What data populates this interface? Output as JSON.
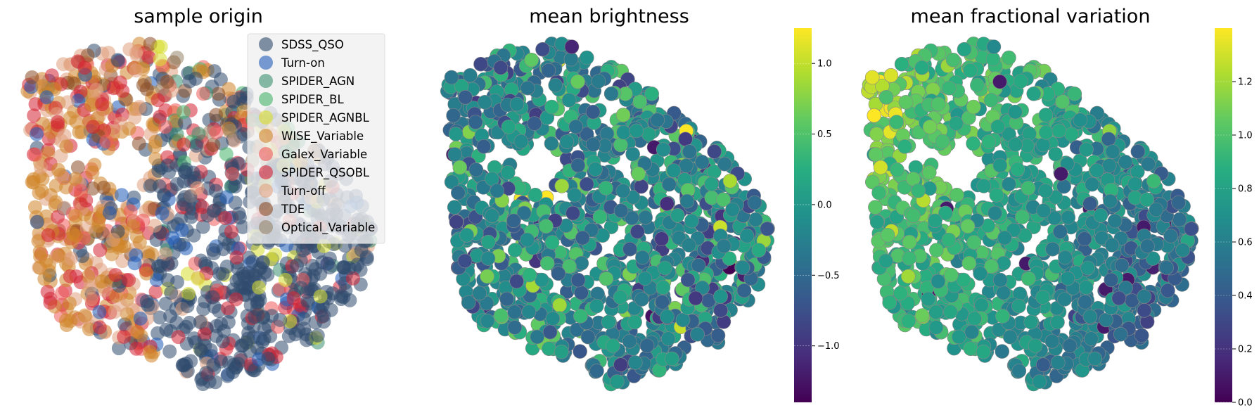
{
  "figure": {
    "panels": [
      {
        "title": "sample origin"
      },
      {
        "title": "mean brightness"
      },
      {
        "title": "mean fractional variation"
      }
    ]
  },
  "chart_data": [
    {
      "type": "scatter",
      "title": "sample origin",
      "encoding": "categorical",
      "n_points_approx": 1300,
      "legend": [
        {
          "label": "SDSS_QSO",
          "color": "#2f4b6e"
        },
        {
          "label": "Turn-on",
          "color": "#1f5bb8"
        },
        {
          "label": "SPIDER_AGN",
          "color": "#3b8f6f"
        },
        {
          "label": "SPIDER_BL",
          "color": "#46b46a"
        },
        {
          "label": "SPIDER_AGNBL",
          "color": "#d7dc2c"
        },
        {
          "label": "WISE_Variable",
          "color": "#d08528"
        },
        {
          "label": "Galex_Variable",
          "color": "#ee5a5a"
        },
        {
          "label": "SPIDER_QSOBL",
          "color": "#d32233"
        },
        {
          "label": "Turn-off",
          "color": "#e0a07e"
        },
        {
          "label": "TDE",
          "color": "#8a4d26"
        },
        {
          "label": "Optical_Variable",
          "color": "#95856a"
        }
      ],
      "legend_position": "top-right",
      "axes": "off"
    },
    {
      "type": "scatter",
      "title": "mean brightness",
      "encoding": "continuous",
      "colormap": "viridis",
      "colorbar": {
        "min": -1.4,
        "max": 1.25,
        "ticks": [
          1.0,
          0.5,
          0.0,
          -0.5,
          -1.0
        ],
        "tick_labels": [
          "1.0",
          "0.5",
          "0.0",
          "−0.5",
          "−1.0"
        ]
      },
      "typical_value": -0.2,
      "axes": "off"
    },
    {
      "type": "scatter",
      "title": "mean fractional variation",
      "encoding": "continuous",
      "colormap": "viridis",
      "colorbar": {
        "min": 0.0,
        "max": 1.4,
        "ticks": [
          1.2,
          1.0,
          0.8,
          0.6,
          0.4,
          0.2,
          0.0
        ],
        "tick_labels": [
          "1.2",
          "1.0",
          "0.8",
          "0.6",
          "0.4",
          "0.2",
          "0.0"
        ]
      },
      "typical_value": 0.75,
      "axes": "off"
    }
  ]
}
